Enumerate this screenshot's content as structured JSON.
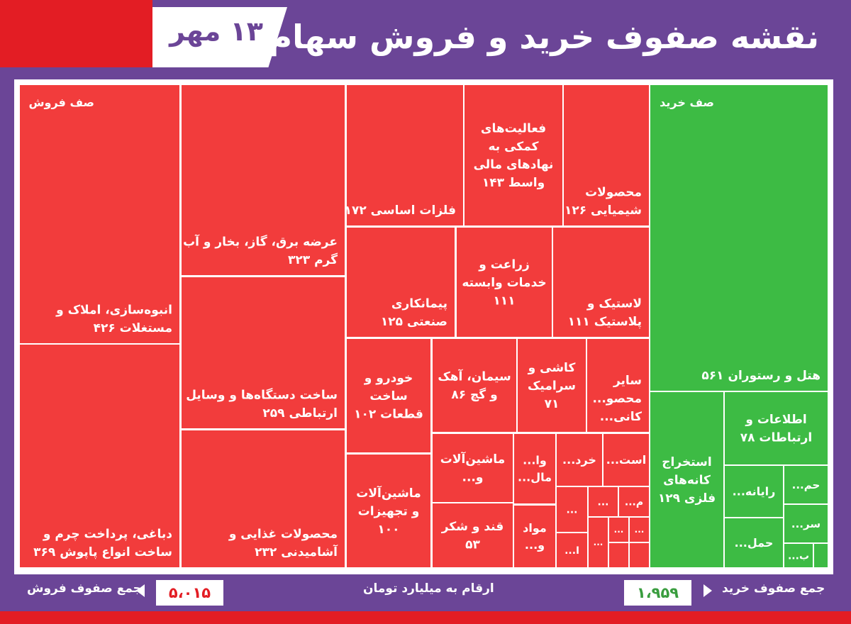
{
  "header": {
    "title": "نقشه صفوف خرید و فروش سهام",
    "date": "۱۳ مهر"
  },
  "colors": {
    "sell": "#f23c3c",
    "buy": "#3dbb44",
    "frame": "#6b4597",
    "accent_red": "#e31d24"
  },
  "footer": {
    "sell_total_label": "جمع صفوف فروش",
    "sell_total_value": "۵،۰۱۵",
    "unit_note": "ارقام به میلیارد تومان",
    "buy_total_label": "جمع صفوف خرید",
    "buy_total_value": "۱،۹۵۹"
  },
  "chart_data": {
    "type": "treemap",
    "unit": "میلیارد تومان",
    "groups": [
      {
        "name": "صف فروش",
        "side": "sell",
        "total": 5015
      },
      {
        "name": "صف خرید",
        "side": "buy",
        "total": 1959
      }
    ],
    "items": [
      {
        "label": "انبوه‌سازی، املاک و مستغلات ۴۲۶",
        "value": 426,
        "side": "sell"
      },
      {
        "label": "دباغی، پرداخت چرم و ساخت انواع پاپوش ۳۶۹",
        "value": 369,
        "side": "sell"
      },
      {
        "label": "عرضه برق، گاز، بخار و آب گرم ۳۲۳",
        "value": 323,
        "side": "sell"
      },
      {
        "label": "ساخت دستگاه‌ها و وسایل ارتباطی ۲۵۹",
        "value": 259,
        "side": "sell"
      },
      {
        "label": "محصولات غذایی و آشامیدنی ۲۳۲",
        "value": 232,
        "side": "sell"
      },
      {
        "label": "فلزات اساسی ۱۷۲",
        "value": 172,
        "side": "sell"
      },
      {
        "label": "فعالیت‌های کمکی به نهادهای مالی واسط ۱۴۳",
        "value": 143,
        "side": "sell"
      },
      {
        "label": "محصولات شیمیایی ۱۲۶",
        "value": 126,
        "side": "sell"
      },
      {
        "label": "پیمانکاری صنعتی ۱۲۵",
        "value": 125,
        "side": "sell"
      },
      {
        "label": "زراعت و خدمات وابسته ۱۱۱",
        "value": 111,
        "side": "sell"
      },
      {
        "label": "لاستیک و پلاستیک ۱۱۱",
        "value": 111,
        "side": "sell"
      },
      {
        "label": "خودرو و ساخت قطعات ۱۰۲",
        "value": 102,
        "side": "sell"
      },
      {
        "label": "ماشین‌آلات و تجهیزات ۱۰۰",
        "value": 100,
        "side": "sell"
      },
      {
        "label": "سیمان، آهک و گچ ۸۶",
        "value": 86,
        "side": "sell"
      },
      {
        "label": "کاشی و سرامیک ۷۱",
        "value": 71,
        "side": "sell"
      },
      {
        "label": "قند و شکر ۵۳",
        "value": 53,
        "side": "sell"
      },
      {
        "label": "سایر محصو... کانی...",
        "value": null,
        "side": "sell"
      },
      {
        "label": "ماشین‌آلات و...",
        "value": null,
        "side": "sell"
      },
      {
        "label": "وا... مال...",
        "value": null,
        "side": "sell"
      },
      {
        "label": "مواد و...",
        "value": null,
        "side": "sell"
      },
      {
        "label": "خرد...",
        "value": null,
        "side": "sell"
      },
      {
        "label": "است...",
        "value": null,
        "side": "sell"
      },
      {
        "label": "هتل و رستوران ۵۶۱",
        "value": 561,
        "side": "buy"
      },
      {
        "label": "استخراج کانه‌های فلزی ۱۲۹",
        "value": 129,
        "side": "buy"
      },
      {
        "label": "اطلاعات و ارتباطات ۷۸",
        "value": 78,
        "side": "buy"
      },
      {
        "label": "رایانه...",
        "value": null,
        "side": "buy"
      },
      {
        "label": "حمل...",
        "value": null,
        "side": "buy"
      },
      {
        "label": "حم...",
        "value": null,
        "side": "buy"
      },
      {
        "label": "سر...",
        "value": null,
        "side": "buy"
      },
      {
        "label": "ب...",
        "value": null,
        "side": "buy"
      }
    ]
  }
}
